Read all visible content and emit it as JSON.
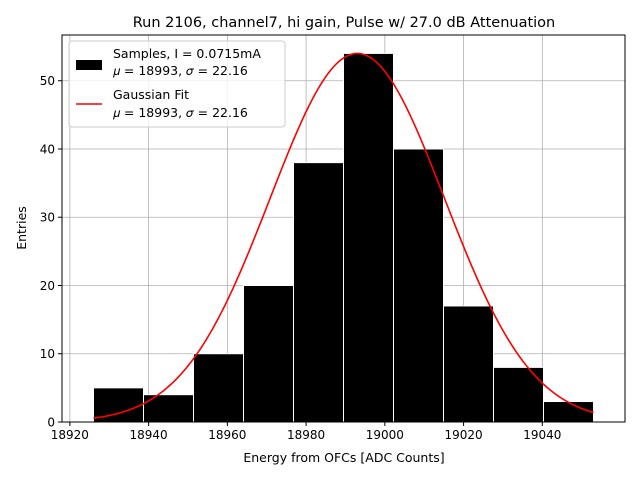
{
  "chart_data": {
    "type": "bar",
    "title": "Run 2106, channel7, hi gain, Pulse w/ 27.0 dB Attenuation",
    "xlabel": "Energy from OFCs [ADC Counts]",
    "ylabel": "Entries",
    "xlim": [
      18918,
      19061
    ],
    "ylim": [
      0,
      56.7
    ],
    "xticks": [
      18920,
      18940,
      18960,
      18980,
      19000,
      19020,
      19040
    ],
    "yticks": [
      0,
      10,
      20,
      30,
      40,
      50
    ],
    "grid": true,
    "legend_position": "top-left",
    "bin_edges": [
      18926,
      18938.7,
      18951.4,
      18964.1,
      18976.8,
      18989.5,
      19002.2,
      19014.9,
      19027.6,
      19040.3,
      19053
    ],
    "counts": [
      5,
      4,
      10,
      20,
      38,
      54,
      40,
      17,
      8,
      3
    ],
    "bar_color": "#000000",
    "fit": {
      "type": "gaussian",
      "mu": 18993,
      "sigma": 22.16,
      "amplitude": 54,
      "x_range": [
        18926,
        19053
      ],
      "color": "#ff0000"
    },
    "legend": [
      {
        "kind": "bar",
        "line1": "Samples, I = 0.0715mA",
        "line2": "𝜇 = 18993, 𝜎 = 22.16"
      },
      {
        "kind": "line",
        "line1": "Gaussian Fit",
        "line2": "𝜇 = 18993, 𝜎 = 22.16"
      }
    ]
  }
}
